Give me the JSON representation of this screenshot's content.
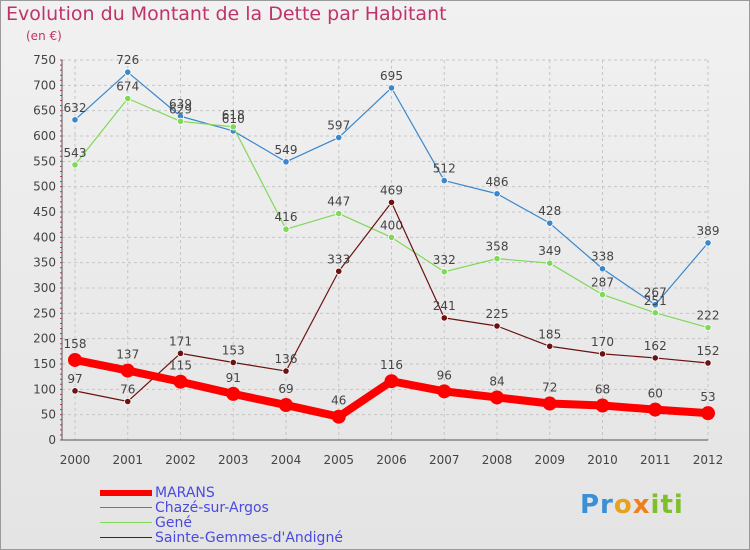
{
  "title": "Evolution du Montant de la Dette par Habitant",
  "subtitle": "(en €)",
  "logo": {
    "p1": "Pr",
    "p2": "o",
    "p3": "x",
    "p4": "iti"
  },
  "chart_data": {
    "type": "line",
    "x": [
      "2000",
      "2001",
      "2002",
      "2003",
      "2004",
      "2005",
      "2006",
      "2007",
      "2008",
      "2009",
      "2010",
      "2011",
      "2012"
    ],
    "ylim": [
      0,
      750
    ],
    "yticks": [
      0,
      50,
      100,
      150,
      200,
      250,
      300,
      350,
      400,
      450,
      500,
      550,
      600,
      650,
      700,
      750
    ],
    "grid": true,
    "legend_position": "bottom-left",
    "series": [
      {
        "name": "MARANS",
        "color": "#ff0000",
        "thick": true,
        "values": [
          158,
          137,
          115,
          91,
          69,
          46,
          116,
          96,
          84,
          72,
          68,
          60,
          53
        ]
      },
      {
        "name": "Chazé-sur-Argos",
        "color": "#3a87cc",
        "thick": false,
        "values": [
          632,
          726,
          639,
          610,
          549,
          597,
          695,
          512,
          486,
          428,
          338,
          267,
          389
        ]
      },
      {
        "name": "Gené",
        "color": "#7ed957",
        "thick": false,
        "values": [
          543,
          674,
          629,
          618,
          416,
          447,
          400,
          332,
          358,
          349,
          287,
          251,
          222
        ]
      },
      {
        "name": "Sainte-Gemmes-d'Andigné",
        "color": "#6b1212",
        "thick": false,
        "values": [
          97,
          76,
          171,
          153,
          136,
          333,
          469,
          241,
          225,
          185,
          170,
          162,
          152
        ]
      }
    ]
  }
}
